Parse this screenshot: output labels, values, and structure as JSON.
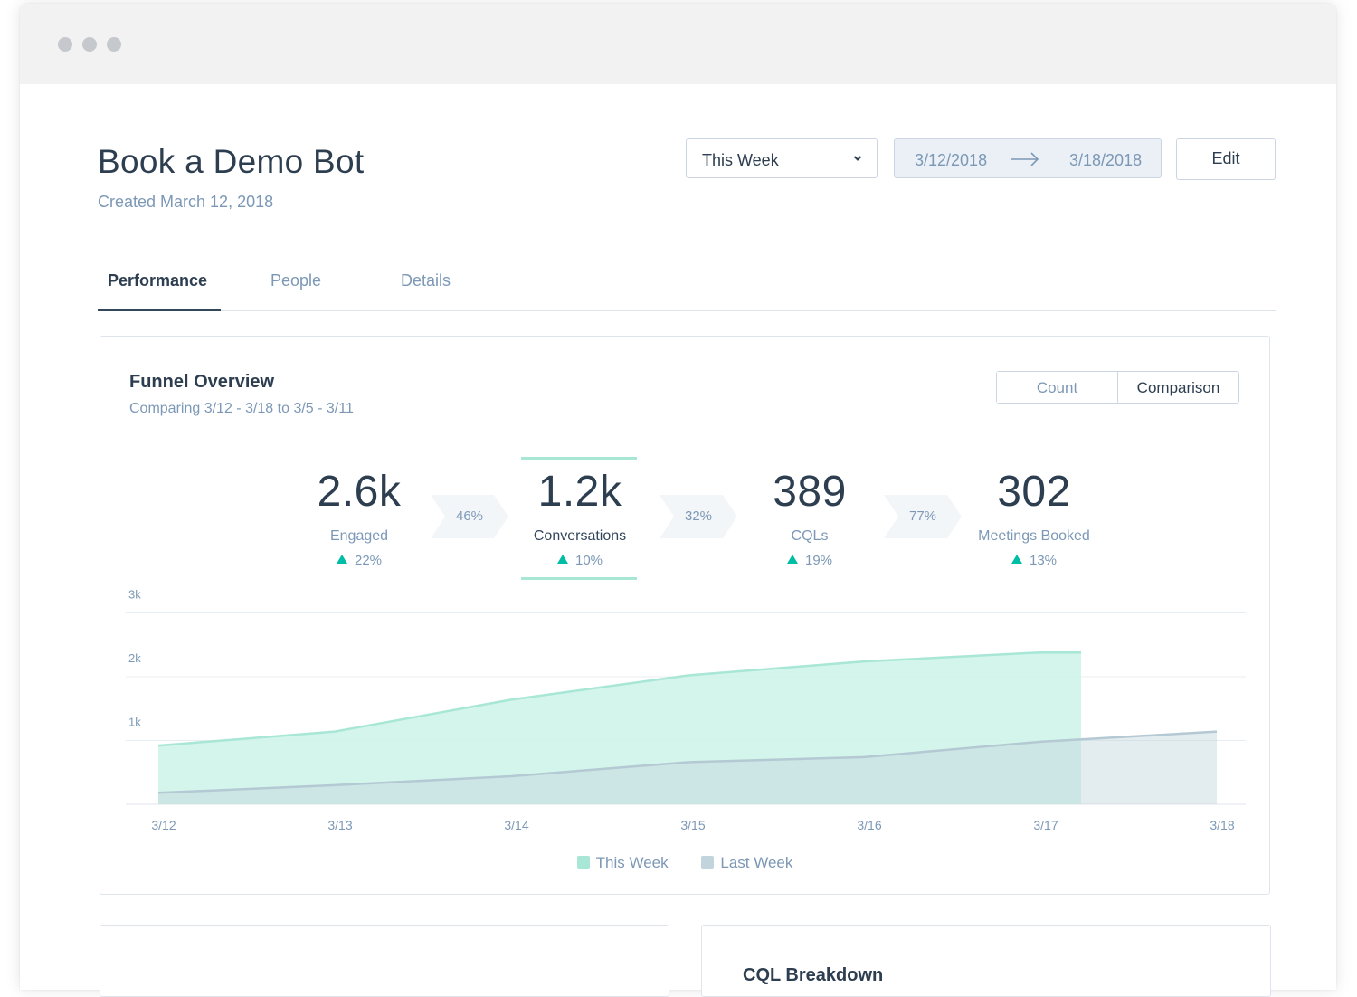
{
  "header": {
    "title": "Book a Demo Bot",
    "subtitle": "Created March 12, 2018"
  },
  "controls": {
    "range_label": "This Week",
    "date_start": "3/12/2018",
    "date_end": "3/18/2018",
    "edit_label": "Edit"
  },
  "tabs": [
    {
      "label": "Performance",
      "active": true
    },
    {
      "label": "People",
      "active": false
    },
    {
      "label": "Details",
      "active": false
    }
  ],
  "funnel": {
    "title": "Funnel Overview",
    "subtitle": "Comparing 3/12 - 3/18 to 3/5 - 3/11",
    "toggle": {
      "count": "Count",
      "comparison": "Comparison",
      "selected": "Comparison"
    },
    "metrics": [
      {
        "value": "2.6k",
        "label": "Engaged",
        "change": "22%"
      },
      {
        "value": "1.2k",
        "label": "Conversations",
        "change": "10%",
        "selected": true
      },
      {
        "value": "389",
        "label": "CQLs",
        "change": "19%"
      },
      {
        "value": "302",
        "label": "Meetings Booked",
        "change": "13%"
      }
    ],
    "conversion_rates": [
      "46%",
      "32%",
      "77%"
    ]
  },
  "chart_data": {
    "type": "area",
    "x": [
      "3/12",
      "3/13",
      "3/14",
      "3/15",
      "3/16",
      "3/17",
      "3/18"
    ],
    "series": [
      {
        "name": "This Week",
        "values": [
          920,
          1140,
          1640,
          2020,
          2240,
          2380,
          null
        ],
        "color": "#a8e6d6"
      },
      {
        "name": "Last Week",
        "values": [
          180,
          300,
          440,
          660,
          740,
          980,
          1140
        ],
        "color": "#c2d4dc"
      }
    ],
    "yticks": [
      "1k",
      "2k",
      "3k"
    ],
    "ylim": [
      0,
      3000
    ],
    "grid": true,
    "legend": "bottom-center"
  },
  "bottom_cards": {
    "right_title": "CQL Breakdown"
  }
}
